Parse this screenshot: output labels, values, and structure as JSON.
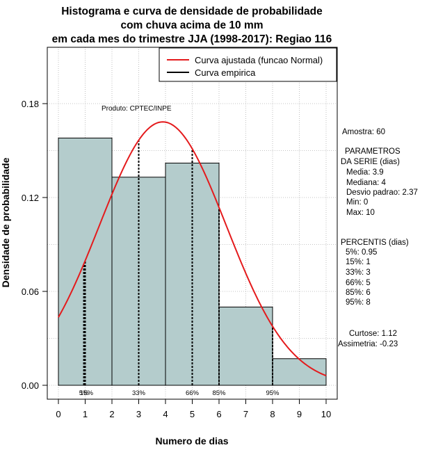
{
  "chart_data": {
    "type": "histogram",
    "title": [
      "Histograma e curva de densidade de probabilidade",
      "com chuva acima de 10 mm",
      "em cada mes do trimestre JJA (1998-2017): Regiao 116"
    ],
    "xlabel": "Numero de dias",
    "ylabel": "Densidade de probabilidade",
    "xlim": [
      0,
      10
    ],
    "ylim": [
      0,
      0.2
    ],
    "x_ticks": [
      "0",
      "1",
      "2",
      "3",
      "4",
      "5",
      "6",
      "7",
      "8",
      "9",
      "10"
    ],
    "y_ticks": [
      "0.00",
      "0.06",
      "0.12",
      "0.18"
    ],
    "grid": true,
    "bins": [
      {
        "from": 0,
        "to": 2,
        "density": 0.158
      },
      {
        "from": 2,
        "to": 4,
        "density": 0.133
      },
      {
        "from": 4,
        "to": 6,
        "density": 0.142
      },
      {
        "from": 6,
        "to": 8,
        "density": 0.05
      },
      {
        "from": 8,
        "to": 10,
        "density": 0.017
      }
    ],
    "normal_curve": {
      "mean": 3.9,
      "sd": 2.37,
      "color": "#e41a1c"
    },
    "percentile_lines": [
      {
        "label": "5%",
        "x": 0.95
      },
      {
        "label": "15%",
        "x": 1
      },
      {
        "label": "33%",
        "x": 3
      },
      {
        "label": "66%",
        "x": 5
      },
      {
        "label": "85%",
        "x": 6
      },
      {
        "label": "95%",
        "x": 8
      }
    ],
    "percentile_axis_labels": [
      {
        "text": "5%",
        "x": 0.95
      },
      {
        "text": "15%",
        "x": 1.05
      },
      {
        "text": "33%",
        "x": 3
      },
      {
        "text": "66%",
        "x": 5
      },
      {
        "text": "85%",
        "x": 6
      },
      {
        "text": "95%",
        "x": 8
      }
    ],
    "legend": [
      {
        "label": "Curva ajustada (funcao Normal)",
        "color": "#e41a1c"
      },
      {
        "label": "Curva empirica",
        "color": "#000000"
      }
    ],
    "legend_position": "top-right",
    "annotation": "Produto: CPTEC/INPE",
    "bar_color": "#b4cccc",
    "grid_color": "#b0b0b0"
  },
  "side_panel": {
    "sample": "Amostra: 60",
    "params_title_1": "PARAMETROS",
    "params_title_2": "DA SERIE (dias)",
    "media": "Media: 3.9",
    "mediana": "Mediana: 4",
    "desvio": "Desvio padrao: 2.37",
    "min": "Min: 0",
    "max": "Max: 10",
    "percentis_title": "PERCENTIS (dias)",
    "p5": "5%: 0.95",
    "p15": "15%: 1",
    "p33": "33%: 3",
    "p66": "66%: 5",
    "p85": "85%: 6",
    "p95": "95%: 8",
    "curtose": "Curtose: 1.12",
    "assimetria": "Assimetria: -0.23"
  }
}
